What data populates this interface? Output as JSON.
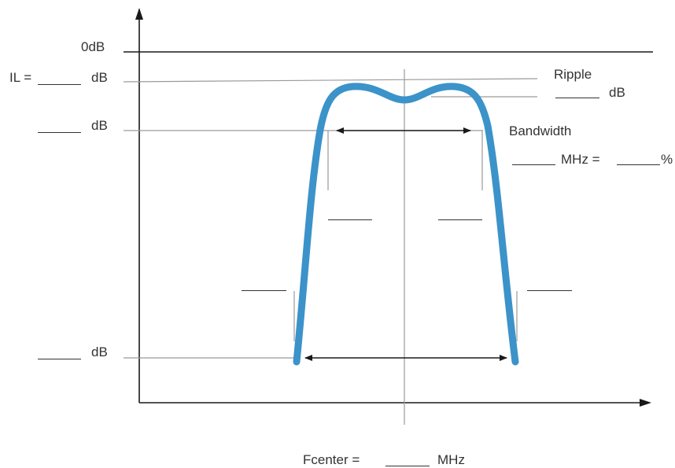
{
  "labels": {
    "zero_db": "0dB",
    "il_prefix": "IL =",
    "db": "dB",
    "ripple": "Ripple",
    "bandwidth": "Bandwidth",
    "mhz_eq": "MHz =",
    "percent": "%",
    "fcenter": "Fcenter =",
    "mhz": "MHz"
  },
  "colors": {
    "curve": "#3b93c9",
    "axis": "#1a1a1a",
    "guide": "#9a9a9a",
    "text": "#333333"
  }
}
